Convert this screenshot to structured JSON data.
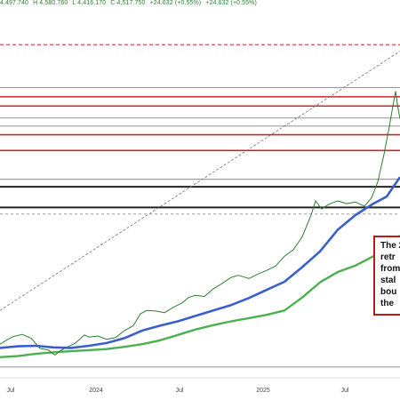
{
  "header": {
    "open": "4,497.740",
    "high": "H 4,580.760",
    "low": "L 4,416.170",
    "close": "C 4,517.750",
    "change": "+24.632 (+0.55%)",
    "change_repeat": "+24.632 (+0.55%)"
  },
  "callout": {
    "lines": [
      "The 2",
      "retr",
      "from",
      "stal",
      "bou",
      "the"
    ]
  },
  "colors": {
    "price": "#2e7d32",
    "ma_blue": "#3a5fcd",
    "ma_green": "#4caf50",
    "resistance_red": "#c62828",
    "level_gray": "#9e9e9e",
    "level_black": "#222222",
    "trend_dashed": "#777777"
  },
  "chart_data": {
    "type": "line",
    "title": "",
    "xlabel": "",
    "ylabel": "",
    "x_tick_labels": [
      "Jul",
      "2024",
      "Jul",
      "2025",
      "Jul"
    ],
    "series": [
      {
        "style": "price",
        "values": [
          [
            0,
            4.2
          ],
          [
            8,
            5.0
          ],
          [
            15,
            5.6
          ],
          [
            25,
            6.0
          ],
          [
            35,
            5.3
          ],
          [
            45,
            3.4
          ],
          [
            55,
            3.1
          ],
          [
            58,
            2.6
          ],
          [
            62,
            2.2
          ],
          [
            68,
            3.0
          ],
          [
            75,
            3.6
          ],
          [
            85,
            4.4
          ],
          [
            95,
            5.9
          ],
          [
            100,
            5.5
          ],
          [
            110,
            5.7
          ],
          [
            120,
            5.1
          ],
          [
            130,
            5.4
          ],
          [
            140,
            6.7
          ],
          [
            150,
            7.6
          ],
          [
            158,
            9.8
          ],
          [
            165,
            10.4
          ],
          [
            175,
            10.3
          ],
          [
            185,
            10.0
          ],
          [
            195,
            11.0
          ],
          [
            205,
            11.8
          ],
          [
            212,
            12.8
          ],
          [
            220,
            13.2
          ],
          [
            230,
            13.0
          ],
          [
            240,
            14.4
          ],
          [
            250,
            15.4
          ],
          [
            260,
            16.5
          ],
          [
            268,
            16.9
          ],
          [
            280,
            16.3
          ],
          [
            290,
            17.1
          ],
          [
            300,
            17.8
          ],
          [
            310,
            18.6
          ],
          [
            320,
            20.4
          ],
          [
            330,
            21.6
          ],
          [
            340,
            24.0
          ],
          [
            345,
            26.0
          ],
          [
            350,
            28.0
          ],
          [
            355,
            30.6
          ],
          [
            362,
            29.1
          ],
          [
            370,
            30.0
          ],
          [
            380,
            30.6
          ],
          [
            390,
            30.1
          ],
          [
            400,
            30.4
          ],
          [
            410,
            29.6
          ],
          [
            418,
            31.2
          ],
          [
            425,
            34.1
          ],
          [
            432,
            39.2
          ],
          [
            438,
            44.3
          ],
          [
            442,
            48.1
          ],
          [
            445,
            50.8
          ],
          [
            448,
            47.5
          ],
          [
            450,
            45.8
          ]
        ]
      },
      {
        "style": "ma_blue",
        "values": [
          [
            0,
            3.5
          ],
          [
            20,
            3.8
          ],
          [
            40,
            3.9
          ],
          [
            60,
            3.6
          ],
          [
            80,
            3.5
          ],
          [
            100,
            3.9
          ],
          [
            120,
            4.4
          ],
          [
            140,
            5.3
          ],
          [
            160,
            6.7
          ],
          [
            180,
            7.6
          ],
          [
            200,
            8.4
          ],
          [
            220,
            9.4
          ],
          [
            240,
            10.4
          ],
          [
            260,
            11.4
          ],
          [
            280,
            12.7
          ],
          [
            300,
            14.2
          ],
          [
            320,
            15.7
          ],
          [
            340,
            18.4
          ],
          [
            360,
            21.3
          ],
          [
            380,
            25.3
          ],
          [
            400,
            28.0
          ],
          [
            420,
            30.1
          ],
          [
            435,
            31.4
          ],
          [
            450,
            35.0
          ]
        ]
      },
      {
        "style": "ma_green",
        "values": [
          [
            0,
            1.8
          ],
          [
            20,
            2.0
          ],
          [
            40,
            2.4
          ],
          [
            60,
            2.7
          ],
          [
            80,
            2.9
          ],
          [
            100,
            3.1
          ],
          [
            120,
            3.3
          ],
          [
            140,
            3.7
          ],
          [
            160,
            4.2
          ],
          [
            180,
            4.9
          ],
          [
            200,
            5.9
          ],
          [
            220,
            6.9
          ],
          [
            240,
            7.7
          ],
          [
            260,
            8.4
          ],
          [
            280,
            9.0
          ],
          [
            300,
            9.6
          ],
          [
            320,
            10.4
          ],
          [
            340,
            12.8
          ],
          [
            360,
            15.6
          ],
          [
            380,
            17.5
          ],
          [
            400,
            18.7
          ],
          [
            420,
            20.4
          ],
          [
            435,
            22.1
          ],
          [
            450,
            24.2
          ]
        ]
      }
    ],
    "levels": [
      {
        "y": 59.4,
        "style": "red_dashed"
      },
      {
        "y": 51.5,
        "style": "gray"
      },
      {
        "y": 49.8,
        "style": "red"
      },
      {
        "y": 48.1,
        "style": "red"
      },
      {
        "y": 45.9,
        "style": "gray"
      },
      {
        "y": 44.4,
        "style": "gray"
      },
      {
        "y": 42.8,
        "style": "red"
      },
      {
        "y": 39.9,
        "style": "red"
      },
      {
        "y": 34.6,
        "style": "gray"
      },
      {
        "y": 33.2,
        "style": "black"
      },
      {
        "y": 29.4,
        "style": "black"
      },
      {
        "y": 28.2,
        "style": "gray_dashed"
      },
      {
        "y": 0.0,
        "style": "gray"
      }
    ],
    "trendline": {
      "from": [
        0,
        10.4
      ],
      "to": [
        450,
        58.2
      ]
    },
    "xlim": [
      0,
      450
    ],
    "ylim": [
      -2,
      66
    ],
    "grid": false
  }
}
